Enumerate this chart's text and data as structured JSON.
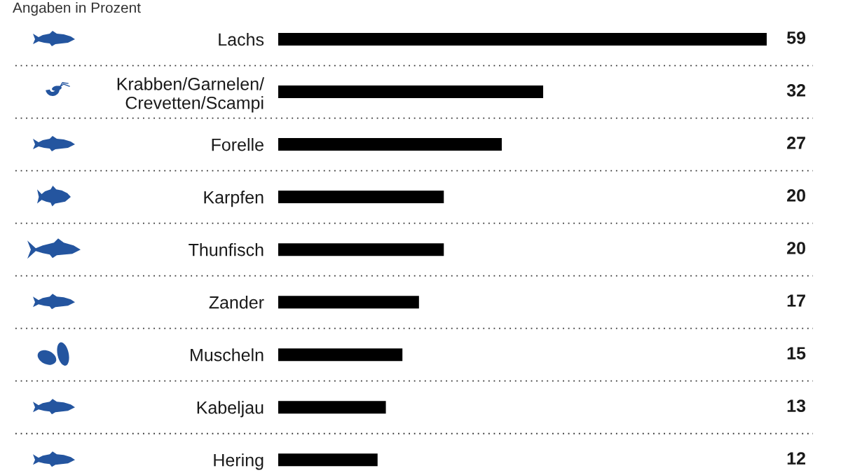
{
  "chart_data": {
    "type": "bar",
    "orientation": "horizontal",
    "subtitle": "Angaben in Prozent",
    "categories": [
      "Lachs",
      "Krabben/Garnelen/\nCrevetten/Scampi",
      "Forelle",
      "Karpfen",
      "Thunfisch",
      "Zander",
      "Muscheln",
      "Kabeljau",
      "Hering"
    ],
    "values": [
      59,
      32,
      27,
      20,
      20,
      17,
      15,
      13,
      12
    ],
    "color": "#000000",
    "data_labels": true,
    "grid": "y",
    "tick_labels": "y"
  }
}
